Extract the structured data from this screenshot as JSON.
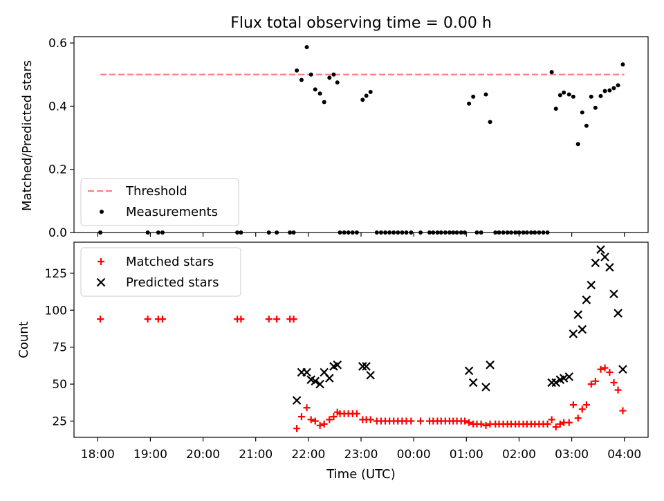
{
  "figure": {
    "title": "Flux total observing time = 0.00 h"
  },
  "chart_data": [
    {
      "type": "scatter",
      "ylabel": "Matched/Predicted stars",
      "ylim": [
        0,
        0.62
      ],
      "yticks": [
        0.0,
        0.2,
        0.4,
        0.6
      ],
      "ytick_labels": [
        "0.0",
        "0.2",
        "0.4",
        "0.6"
      ],
      "xlim": [
        -0.45,
        10.45
      ],
      "xticks": [
        0,
        1,
        2,
        3,
        4,
        5,
        6,
        7,
        8,
        9,
        10
      ],
      "xtick_labels": [],
      "x_unit": "hours since 18:00",
      "threshold": {
        "name": "Threshold",
        "value": 0.5,
        "x": [
          0.05,
          10.0
        ],
        "color": "#ff7f7f"
      },
      "series": [
        {
          "name": "Measurements",
          "color": "#000000",
          "points": [
            [
              0.05,
              0.0
            ],
            [
              0.95,
              0.0
            ],
            [
              1.15,
              0.0
            ],
            [
              1.23,
              0.0
            ],
            [
              2.65,
              0.0
            ],
            [
              2.72,
              0.0
            ],
            [
              3.25,
              0.0
            ],
            [
              3.4,
              0.0
            ],
            [
              3.65,
              0.0
            ],
            [
              3.72,
              0.0
            ],
            [
              3.78,
              0.513
            ],
            [
              3.87,
              0.483
            ],
            [
              3.97,
              0.587
            ],
            [
              4.05,
              0.5
            ],
            [
              4.13,
              0.453
            ],
            [
              4.22,
              0.44
            ],
            [
              4.3,
              0.413
            ],
            [
              4.4,
              0.49
            ],
            [
              4.48,
              0.5
            ],
            [
              4.55,
              0.475
            ],
            [
              4.6,
              0.0
            ],
            [
              4.68,
              0.0
            ],
            [
              4.76,
              0.0
            ],
            [
              4.84,
              0.0
            ],
            [
              4.92,
              0.0
            ],
            [
              5.03,
              0.42
            ],
            [
              5.1,
              0.433
            ],
            [
              5.18,
              0.445
            ],
            [
              5.3,
              0.0
            ],
            [
              5.38,
              0.0
            ],
            [
              5.46,
              0.0
            ],
            [
              5.54,
              0.0
            ],
            [
              5.62,
              0.0
            ],
            [
              5.7,
              0.0
            ],
            [
              5.78,
              0.0
            ],
            [
              5.86,
              0.0
            ],
            [
              5.95,
              0.0
            ],
            [
              6.13,
              0.0
            ],
            [
              6.3,
              0.0
            ],
            [
              6.37,
              0.0
            ],
            [
              6.45,
              0.0
            ],
            [
              6.52,
              0.0
            ],
            [
              6.6,
              0.0
            ],
            [
              6.68,
              0.0
            ],
            [
              6.75,
              0.0
            ],
            [
              6.82,
              0.0
            ],
            [
              6.9,
              0.0
            ],
            [
              6.97,
              0.0
            ],
            [
              7.05,
              0.408
            ],
            [
              7.13,
              0.43
            ],
            [
              7.2,
              0.0
            ],
            [
              7.28,
              0.0
            ],
            [
              7.37,
              0.437
            ],
            [
              7.45,
              0.35
            ],
            [
              7.55,
              0.0
            ],
            [
              7.62,
              0.0
            ],
            [
              7.7,
              0.0
            ],
            [
              7.78,
              0.0
            ],
            [
              7.85,
              0.0
            ],
            [
              7.93,
              0.0
            ],
            [
              8.0,
              0.0
            ],
            [
              8.08,
              0.0
            ],
            [
              8.15,
              0.0
            ],
            [
              8.23,
              0.0
            ],
            [
              8.3,
              0.0
            ],
            [
              8.38,
              0.0
            ],
            [
              8.46,
              0.0
            ],
            [
              8.54,
              0.0
            ],
            [
              8.62,
              0.508
            ],
            [
              8.7,
              0.392
            ],
            [
              8.78,
              0.435
            ],
            [
              8.85,
              0.443
            ],
            [
              8.95,
              0.437
            ],
            [
              9.03,
              0.43
            ],
            [
              9.12,
              0.28
            ],
            [
              9.2,
              0.38
            ],
            [
              9.28,
              0.338
            ],
            [
              9.37,
              0.43
            ],
            [
              9.45,
              0.395
            ],
            [
              9.55,
              0.432
            ],
            [
              9.63,
              0.448
            ],
            [
              9.72,
              0.45
            ],
            [
              9.8,
              0.457
            ],
            [
              9.88,
              0.466
            ],
            [
              9.97,
              0.532
            ]
          ]
        }
      ],
      "legend": {
        "position": "lower-left",
        "entries": [
          "Threshold",
          "Measurements"
        ]
      }
    },
    {
      "type": "scatter",
      "ylabel": "Count",
      "xlabel": "Time (UTC)",
      "ylim": [
        14,
        146
      ],
      "yticks": [
        25,
        50,
        75,
        100,
        125
      ],
      "ytick_labels": [
        "25",
        "50",
        "75",
        "100",
        "125"
      ],
      "xlim": [
        -0.45,
        10.45
      ],
      "xticks": [
        0,
        1,
        2,
        3,
        4,
        5,
        6,
        7,
        8,
        9,
        10
      ],
      "xtick_labels": [
        "18:00",
        "19:00",
        "20:00",
        "21:00",
        "22:00",
        "23:00",
        "00:00",
        "01:00",
        "02:00",
        "03:00",
        "04:00"
      ],
      "series": [
        {
          "name": "Matched stars",
          "marker": "plus",
          "color": "#ff0000",
          "points": [
            [
              0.05,
              94
            ],
            [
              0.95,
              94
            ],
            [
              1.15,
              94
            ],
            [
              1.23,
              94
            ],
            [
              2.65,
              94
            ],
            [
              2.72,
              94
            ],
            [
              3.25,
              94
            ],
            [
              3.4,
              94
            ],
            [
              3.65,
              94
            ],
            [
              3.72,
              94
            ],
            [
              3.78,
              20
            ],
            [
              3.87,
              28
            ],
            [
              3.97,
              34
            ],
            [
              4.05,
              26
            ],
            [
              4.13,
              25
            ],
            [
              4.22,
              22
            ],
            [
              4.3,
              23
            ],
            [
              4.4,
              26
            ],
            [
              4.48,
              28
            ],
            [
              4.55,
              31
            ],
            [
              4.6,
              30
            ],
            [
              4.68,
              30
            ],
            [
              4.76,
              30
            ],
            [
              4.84,
              30
            ],
            [
              4.92,
              30
            ],
            [
              5.03,
              26
            ],
            [
              5.1,
              26
            ],
            [
              5.18,
              26
            ],
            [
              5.3,
              25
            ],
            [
              5.38,
              25
            ],
            [
              5.46,
              25
            ],
            [
              5.54,
              25
            ],
            [
              5.62,
              25
            ],
            [
              5.7,
              25
            ],
            [
              5.78,
              25
            ],
            [
              5.86,
              25
            ],
            [
              5.95,
              25
            ],
            [
              6.13,
              25
            ],
            [
              6.3,
              25
            ],
            [
              6.37,
              25
            ],
            [
              6.45,
              25
            ],
            [
              6.52,
              25
            ],
            [
              6.6,
              25
            ],
            [
              6.68,
              25
            ],
            [
              6.75,
              25
            ],
            [
              6.82,
              25
            ],
            [
              6.9,
              25
            ],
            [
              6.97,
              25
            ],
            [
              7.05,
              24
            ],
            [
              7.13,
              23
            ],
            [
              7.2,
              23
            ],
            [
              7.28,
              23
            ],
            [
              7.37,
              22
            ],
            [
              7.45,
              23
            ],
            [
              7.55,
              23
            ],
            [
              7.62,
              23
            ],
            [
              7.7,
              23
            ],
            [
              7.78,
              23
            ],
            [
              7.85,
              23
            ],
            [
              7.93,
              23
            ],
            [
              8.0,
              23
            ],
            [
              8.08,
              23
            ],
            [
              8.15,
              23
            ],
            [
              8.23,
              23
            ],
            [
              8.3,
              23
            ],
            [
              8.38,
              23
            ],
            [
              8.46,
              23
            ],
            [
              8.54,
              23
            ],
            [
              8.62,
              26
            ],
            [
              8.7,
              21
            ],
            [
              8.78,
              23
            ],
            [
              8.85,
              24
            ],
            [
              8.95,
              24
            ],
            [
              9.03,
              36
            ],
            [
              9.12,
              27
            ],
            [
              9.2,
              33
            ],
            [
              9.28,
              36
            ],
            [
              9.37,
              50
            ],
            [
              9.45,
              52
            ],
            [
              9.55,
              60
            ],
            [
              9.63,
              61
            ],
            [
              9.72,
              58
            ],
            [
              9.8,
              51
            ],
            [
              9.88,
              46
            ],
            [
              9.97,
              32
            ]
          ]
        },
        {
          "name": "Predicted stars",
          "marker": "x",
          "color": "#000000",
          "points": [
            [
              3.78,
              39
            ],
            [
              3.87,
              58
            ],
            [
              3.97,
              58
            ],
            [
              4.05,
              53
            ],
            [
              4.13,
              52
            ],
            [
              4.22,
              50
            ],
            [
              4.3,
              58
            ],
            [
              4.4,
              54
            ],
            [
              4.48,
              62
            ],
            [
              4.55,
              63
            ],
            [
              5.03,
              62
            ],
            [
              5.1,
              62
            ],
            [
              5.18,
              56
            ],
            [
              7.05,
              59
            ],
            [
              7.13,
              51
            ],
            [
              7.37,
              48
            ],
            [
              7.45,
              63
            ],
            [
              8.62,
              51
            ],
            [
              8.7,
              51
            ],
            [
              8.78,
              53
            ],
            [
              8.85,
              54
            ],
            [
              8.95,
              55
            ],
            [
              9.03,
              84
            ],
            [
              9.12,
              97
            ],
            [
              9.2,
              87
            ],
            [
              9.28,
              107
            ],
            [
              9.37,
              117
            ],
            [
              9.45,
              132
            ],
            [
              9.55,
              141
            ],
            [
              9.63,
              136
            ],
            [
              9.72,
              129
            ],
            [
              9.8,
              111
            ],
            [
              9.88,
              98
            ],
            [
              9.97,
              60
            ]
          ]
        }
      ],
      "legend": {
        "position": "upper-left",
        "entries": [
          "Matched stars",
          "Predicted stars"
        ]
      }
    }
  ]
}
